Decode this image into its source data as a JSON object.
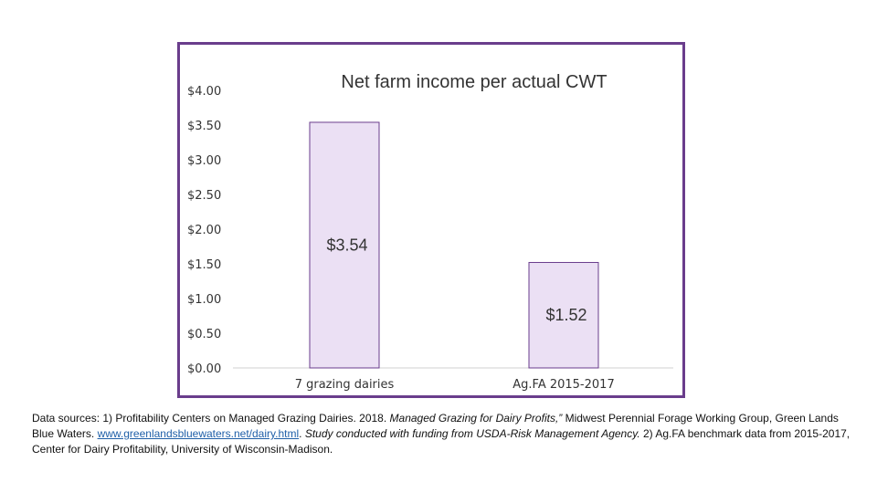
{
  "chart_data": {
    "type": "bar",
    "title": "Net farm income per actual CWT",
    "categories": [
      "7 grazing dairies",
      "Ag.FA 2015-2017"
    ],
    "values": [
      3.54,
      1.52
    ],
    "data_labels": [
      "$3.54",
      "$1.52"
    ],
    "ylim": [
      0,
      4.0
    ],
    "yticks": [
      0,
      0.5,
      1.0,
      1.5,
      2.0,
      2.5,
      3.0,
      3.5,
      4.0
    ],
    "ytick_labels": [
      "$0.00",
      "$0.50",
      "$1.00",
      "$1.50",
      "$2.00",
      "$2.50",
      "$3.00",
      "$3.50",
      "$4.00"
    ],
    "xlabel": "",
    "ylabel": "",
    "grid": false,
    "colors": {
      "bar_fill": "#ebe0f4",
      "bar_stroke": "#6a3d8c",
      "frame": "#6a3d8c",
      "axis": "#d0d0d0"
    }
  },
  "sources": {
    "part1": "Data sources: 1) Profitability Centers on Managed Grazing Dairies. 2018. ",
    "part2_italic": "Managed Grazing for Dairy Profits,”",
    "part3": " Midwest Perennial Forage Working Group, Green Lands Blue Waters. ",
    "link": "www.greenlandsbluewaters.net/dairy.html",
    "part4": ". ",
    "part5_italic": "Study conducted with funding from USDA-Risk Management Agency.",
    "part6": " 2) Ag.FA benchmark data from 2015-2017, Center for Dairy Profitability, University of Wisconsin-Madison."
  }
}
